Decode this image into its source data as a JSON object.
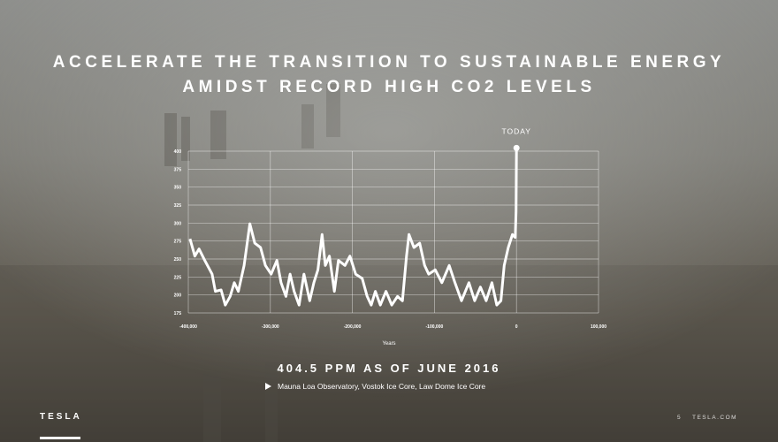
{
  "chart_data": {
    "type": "line",
    "title": [
      "ACCELERATE THE TRANSITION TO SUSTAINABLE ENERGY",
      "AMIDST RECORD HIGH CO2 LEVELS"
    ],
    "annotation": "TODAY",
    "x_label": "Years",
    "headline": "404.5 PPM AS OF JUNE 2016",
    "source": "Mauna Loa Observatory, Vostok Ice Core, Law Dome Ice Core",
    "logo": "TESLA",
    "page_number": "5",
    "site": "TESLA.COM",
    "xlim": [
      -400000,
      100000
    ],
    "xticks": [
      {
        "value": -400000,
        "label": "-400,000"
      },
      {
        "value": -300000,
        "label": "-300,000"
      },
      {
        "value": -200000,
        "label": "-200,000"
      },
      {
        "value": -100000,
        "label": "-100,000"
      },
      0,
      {
        "value": 100000,
        "label": "100,000"
      }
    ],
    "ylim": [
      175,
      400
    ],
    "yticks": [
      175,
      200,
      225,
      250,
      275,
      300,
      325,
      350,
      375,
      400
    ],
    "grid": true,
    "series": [
      {
        "color": "#ffffff",
        "x": [
          -398000,
          -392000,
          -387000,
          -380000,
          -371000,
          -367000,
          -360000,
          -355000,
          -349000,
          -344000,
          -339000,
          -332000,
          -325000,
          -319000,
          -312000,
          -306000,
          -299000,
          -292000,
          -287000,
          -281000,
          -276000,
          -271000,
          -265000,
          -259000,
          -252000,
          -247000,
          -242000,
          -237000,
          -233000,
          -228000,
          -222000,
          -217000,
          -209000,
          -203000,
          -196000,
          -188000,
          -182000,
          -177000,
          -172000,
          -166000,
          -159000,
          -152000,
          -145000,
          -139000,
          -134000,
          -131000,
          -125000,
          -118000,
          -112000,
          -107000,
          -99000,
          -91000,
          -82000,
          -75000,
          -67000,
          -58000,
          -51000,
          -44000,
          -37000,
          -30000,
          -24000,
          -19000,
          -15000,
          -10000,
          -5000,
          -1500,
          -500,
          0
        ],
        "values": [
          278,
          254,
          264,
          248,
          229,
          205,
          207,
          186,
          198,
          217,
          205,
          241,
          299,
          272,
          266,
          241,
          229,
          248,
          217,
          198,
          229,
          205,
          186,
          229,
          192,
          217,
          235,
          284,
          241,
          254,
          205,
          248,
          241,
          254,
          229,
          223,
          198,
          186,
          205,
          186,
          205,
          186,
          198,
          192,
          254,
          284,
          266,
          272,
          241,
          229,
          235,
          217,
          241,
          217,
          192,
          217,
          192,
          211,
          192,
          217,
          186,
          192,
          241,
          266,
          284,
          280,
          315,
          404.5
        ]
      }
    ]
  }
}
